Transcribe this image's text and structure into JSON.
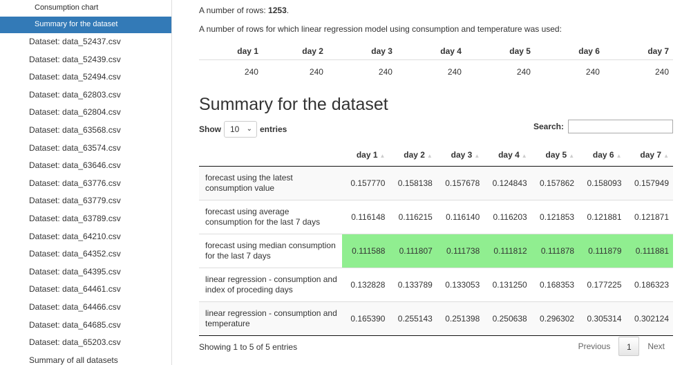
{
  "sidebar": {
    "sub_items": [
      "Consumption chart",
      "Summary for the dataset"
    ],
    "datasets": [
      "Dataset: data_52437.csv",
      "Dataset: data_52439.csv",
      "Dataset: data_52494.csv",
      "Dataset: data_62803.csv",
      "Dataset: data_62804.csv",
      "Dataset: data_63568.csv",
      "Dataset: data_63574.csv",
      "Dataset: data_63646.csv",
      "Dataset: data_63776.csv",
      "Dataset: data_63779.csv",
      "Dataset: data_63789.csv",
      "Dataset: data_64210.csv",
      "Dataset: data_64352.csv",
      "Dataset: data_64395.csv",
      "Dataset: data_64461.csv",
      "Dataset: data_64466.csv",
      "Dataset: data_64685.csv",
      "Dataset: data_65203.csv"
    ],
    "summary_all": "Summary of all datasets"
  },
  "main": {
    "rows_label": "A number of rows: ",
    "rows_value": "1253",
    "rows_suffix": ".",
    "regression_rows_label": "A number of rows for which linear regression model using consumption and temperature was used:",
    "reg_table": {
      "headers": [
        "day 1",
        "day 2",
        "day 3",
        "day 4",
        "day 5",
        "day 6",
        "day 7"
      ],
      "values": [
        "240",
        "240",
        "240",
        "240",
        "240",
        "240",
        "240"
      ]
    },
    "heading": "Summary for the dataset",
    "show_label": "Show",
    "entries_value": "10",
    "entries_label": "entries",
    "search_label": "Search:",
    "search_value": "",
    "sum_table": {
      "headers": [
        "",
        "day 1",
        "day 2",
        "day 3",
        "day 4",
        "day 5",
        "day 6",
        "day 7"
      ],
      "rows": [
        {
          "method": "forecast using the latest consumption value",
          "values": [
            "0.157770",
            "0.158138",
            "0.157678",
            "0.124843",
            "0.157862",
            "0.158093",
            "0.157949"
          ]
        },
        {
          "method": "forecast using average consumption for the last 7 days",
          "values": [
            "0.116148",
            "0.116215",
            "0.116140",
            "0.116203",
            "0.121853",
            "0.121881",
            "0.121871"
          ]
        },
        {
          "method": "forecast using median consumption for the last 7 days",
          "values": [
            "0.111588",
            "0.111807",
            "0.111738",
            "0.111812",
            "0.111878",
            "0.111879",
            "0.111881"
          ]
        },
        {
          "method": "linear regression - consumption and index of proceding days",
          "values": [
            "0.132828",
            "0.133789",
            "0.133053",
            "0.131250",
            "0.168353",
            "0.177225",
            "0.186323"
          ]
        },
        {
          "method": "linear regression - consumption and temperature",
          "values": [
            "0.165390",
            "0.255143",
            "0.251398",
            "0.250638",
            "0.296302",
            "0.305314",
            "0.302124"
          ]
        }
      ],
      "highlight_color": "#90ee90"
    },
    "footer_info": "Showing 1 to 5 of 5 entries",
    "pager": {
      "previous": "Previous",
      "page": "1",
      "next": "Next"
    }
  },
  "colors": {
    "active_bg": "#337ab7"
  }
}
